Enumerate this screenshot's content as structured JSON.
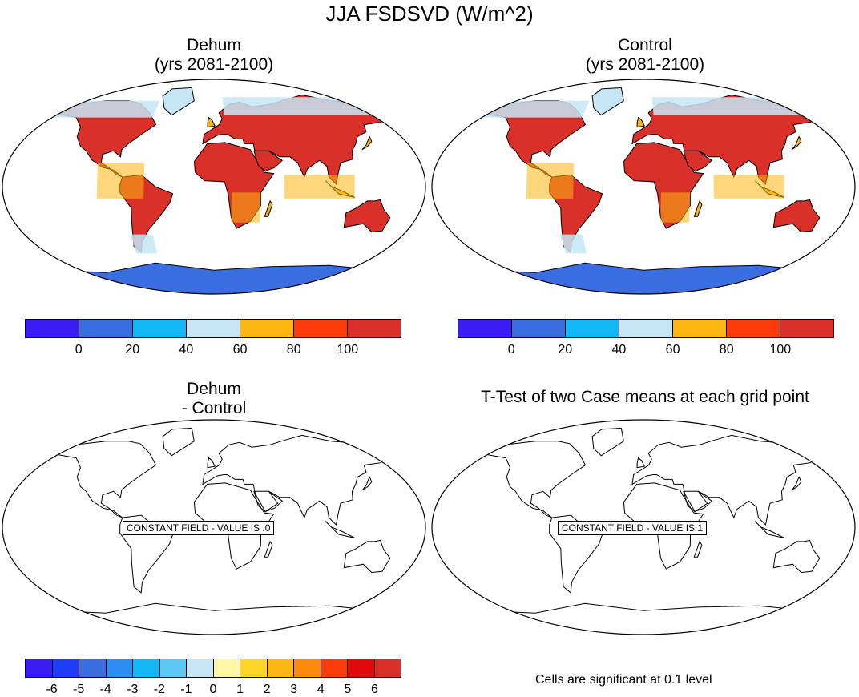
{
  "main_title": "JJA FSDSVD (W/m^2)",
  "panels": [
    {
      "title_line1": "Dehum",
      "title_line2": "(yrs 2081-2100)",
      "filled": true
    },
    {
      "title_line1": "Control",
      "title_line2": "(yrs 2081-2100)",
      "filled": true
    },
    {
      "title_line1": "Dehum",
      "title_line2": "- Control",
      "filled": false,
      "constant_label": "CONSTANT FIELD - VALUE IS .0"
    },
    {
      "title_line1": "T-Test of two Case means at each grid point",
      "title_line2": "",
      "filled": false,
      "constant_label": "CONSTANT FIELD - VALUE IS 1"
    }
  ],
  "colorbar_top": {
    "colors": [
      "#3a1cf5",
      "#3a6ee0",
      "#12b8f5",
      "#c6e6f5",
      "#fdb712",
      "#fd3a0a",
      "#d9302a"
    ],
    "labels": [
      "0",
      "20",
      "40",
      "60",
      "80",
      "100"
    ]
  },
  "colorbar_diff": {
    "colors": [
      "#3a1cf5",
      "#1e3ef5",
      "#3a6ee0",
      "#2a8ef5",
      "#12b8f5",
      "#5ec8f5",
      "#c6e6f5",
      "#fff7a6",
      "#fdd628",
      "#fdb712",
      "#fd8a0a",
      "#fd3a0a",
      "#e00a0a",
      "#d9302a"
    ],
    "labels": [
      "-6",
      "-5",
      "-4",
      "-3",
      "-2",
      "-1",
      "0",
      "1",
      "2",
      "3",
      "4",
      "5",
      "6"
    ]
  },
  "significance_note": "Cells are significant at 0.1 level"
}
